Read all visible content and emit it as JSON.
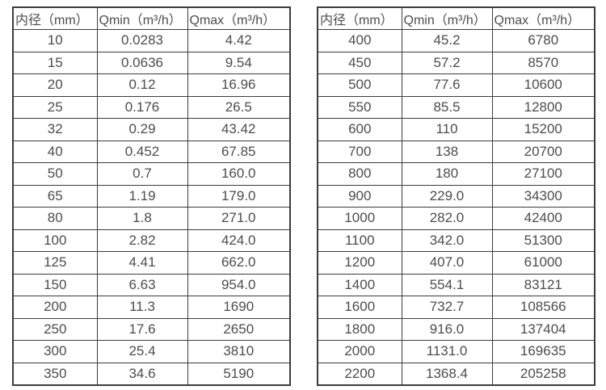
{
  "colors": {
    "border": "#3c3c3c",
    "text": "#4d4d4d",
    "background": "#ffffff"
  },
  "tables": [
    {
      "headers": [
        "内径（mm）",
        "Qmin（m³/h）",
        "Qmax（m³/h）"
      ],
      "rows": [
        [
          "10",
          "0.0283",
          "4.42"
        ],
        [
          "15",
          "0.0636",
          "9.54"
        ],
        [
          "20",
          "0.12",
          "16.96"
        ],
        [
          "25",
          "0.176",
          "26.5"
        ],
        [
          "32",
          "0.29",
          "43.42"
        ],
        [
          "40",
          "0.452",
          "67.85"
        ],
        [
          "50",
          "0.7",
          "160.0"
        ],
        [
          "65",
          "1.19",
          "179.0"
        ],
        [
          "80",
          "1.8",
          "271.0"
        ],
        [
          "100",
          "2.82",
          "424.0"
        ],
        [
          "125",
          "4.41",
          "662.0"
        ],
        [
          "150",
          "6.63",
          "954.0"
        ],
        [
          "200",
          "11.3",
          "1690"
        ],
        [
          "250",
          "17.6",
          "2650"
        ],
        [
          "300",
          "25.4",
          "3810"
        ],
        [
          "350",
          "34.6",
          "5190"
        ]
      ]
    },
    {
      "headers": [
        "内径（mm）",
        "Qmin（m³/h）",
        "Qmax（m³/h）"
      ],
      "rows": [
        [
          "400",
          "45.2",
          "6780"
        ],
        [
          "450",
          "57.2",
          "8570"
        ],
        [
          "500",
          "77.6",
          "10600"
        ],
        [
          "550",
          "85.5",
          "12800"
        ],
        [
          "600",
          "110",
          "15200"
        ],
        [
          "700",
          "138",
          "20700"
        ],
        [
          "800",
          "180",
          "27100"
        ],
        [
          "900",
          "229.0",
          "34300"
        ],
        [
          "1000",
          "282.0",
          "42400"
        ],
        [
          "1100",
          "342.0",
          "51300"
        ],
        [
          "1200",
          "407.0",
          "61000"
        ],
        [
          "1400",
          "554.1",
          "83121"
        ],
        [
          "1600",
          "732.7",
          "108566"
        ],
        [
          "1800",
          "916.0",
          "137404"
        ],
        [
          "2000",
          "1131.0",
          "169635"
        ],
        [
          "2200",
          "1368.4",
          "205258"
        ]
      ]
    }
  ]
}
